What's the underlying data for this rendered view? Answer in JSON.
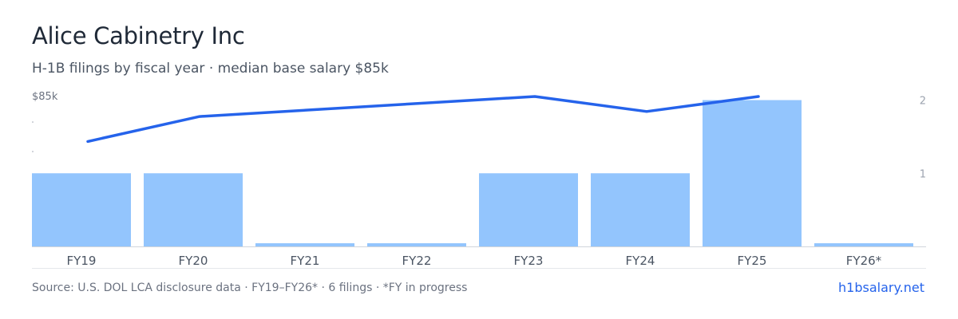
{
  "header": {
    "title": "Alice Cabinetry Inc",
    "subtitle": "H-1B filings by fiscal year · median base salary $85k"
  },
  "footer": {
    "source": "Source: U.S. DOL LCA disclosure data · FY19–FY26* · 6 filings · *FY in progress",
    "brand": "h1bsalary.net"
  },
  "colors": {
    "bar": "#93c5fd",
    "line": "#2563eb",
    "axis": "#d1d5db",
    "tick_text": "#4b5563",
    "muted_text": "#9ca3af"
  },
  "chart_data": {
    "type": "bar",
    "categories": [
      "FY19",
      "FY20",
      "FY21",
      "FY22",
      "FY23",
      "FY24",
      "FY25",
      "FY26*"
    ],
    "series": [
      {
        "values": [
          1,
          1,
          0,
          0,
          1,
          1,
          2,
          0
        ]
      },
      {
        "values": [
          76,
          81,
          null,
          null,
          85,
          82,
          85,
          null
        ]
      }
    ],
    "left_axis": {
      "tick_label": "$85k",
      "ylim": [
        55,
        85
      ]
    },
    "right_axis": {
      "tick_labels": [
        "2",
        "1"
      ],
      "ylim": [
        0,
        2.3
      ]
    }
  }
}
